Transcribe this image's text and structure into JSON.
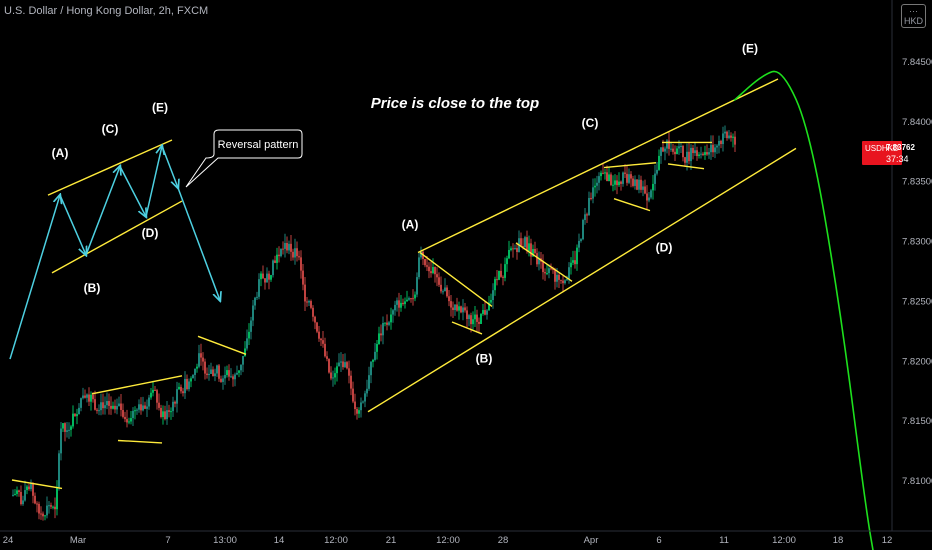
{
  "header": {
    "title": "U.S. Dollar / Hong Kong Dollar, 2h, FXCM",
    "currency": "HKD"
  },
  "colors": {
    "background": "#000000",
    "candle_up": "#26a69a",
    "candle_up_bright": "#00e676",
    "candle_down": "#ef5350",
    "pattern_lines": "#ffeb3b",
    "wave_arrows": "#4dd0e1",
    "projection": "#1de01d",
    "price_tag": "#e8141f",
    "axis_text": "#b2b5be"
  },
  "price_tag": {
    "symbol": "USDHKD",
    "price": "7.83762",
    "countdown": "37:34",
    "value": 7.83762
  },
  "annotations": {
    "headline": "Price is close to the top",
    "callout": "Reversal pattern"
  },
  "chart_data": {
    "type": "candlestick",
    "symbol": "USDHKD",
    "interval": "2h",
    "source": "FXCM",
    "y_axis": {
      "ticks": [
        7.845,
        7.84,
        7.835,
        7.83,
        7.825,
        7.82,
        7.815,
        7.81
      ],
      "tick_labels": [
        "7.84500",
        "7.84000",
        "7.83500",
        "7.83000",
        "7.82500",
        "7.82000",
        "7.81500",
        "7.81000"
      ],
      "range": [
        7.8055,
        7.8495
      ]
    },
    "x_axis": {
      "tick_labels": [
        "24",
        "Mar",
        "7",
        "13:00",
        "14",
        "12:00",
        "21",
        "12:00",
        "28",
        "Apr",
        "6",
        "11",
        "12:00",
        "18",
        "12"
      ]
    },
    "close_path": [
      [
        0,
        7.8088
      ],
      [
        6,
        7.8085
      ],
      [
        12,
        7.8087
      ],
      [
        18,
        7.8091
      ],
      [
        22,
        7.808
      ],
      [
        26,
        7.8089
      ],
      [
        32,
        7.8092
      ],
      [
        38,
        7.8072
      ],
      [
        44,
        7.8074
      ],
      [
        50,
        7.808
      ],
      [
        56,
        7.807
      ],
      [
        58,
        7.811
      ],
      [
        60,
        7.8145
      ],
      [
        66,
        7.814
      ],
      [
        72,
        7.8152
      ],
      [
        78,
        7.8162
      ],
      [
        84,
        7.8175
      ],
      [
        90,
        7.817
      ],
      [
        96,
        7.8162
      ],
      [
        102,
        7.8165
      ],
      [
        108,
        7.816
      ],
      [
        114,
        7.8158
      ],
      [
        120,
        7.816
      ],
      [
        126,
        7.8153
      ],
      [
        132,
        7.8155
      ],
      [
        138,
        7.8165
      ],
      [
        144,
        7.8161
      ],
      [
        150,
        7.817
      ],
      [
        156,
        7.8172
      ],
      [
        160,
        7.8155
      ],
      [
        164,
        7.8152
      ],
      [
        170,
        7.816
      ],
      [
        176,
        7.817
      ],
      [
        180,
        7.8175
      ],
      [
        186,
        7.818
      ],
      [
        192,
        7.8185
      ],
      [
        198,
        7.8202
      ],
      [
        204,
        7.8195
      ],
      [
        210,
        7.819
      ],
      [
        216,
        7.8192
      ],
      [
        222,
        7.8185
      ],
      [
        228,
        7.819
      ],
      [
        234,
        7.8184
      ],
      [
        240,
        7.8196
      ],
      [
        246,
        7.821
      ],
      [
        250,
        7.823
      ],
      [
        256,
        7.8255
      ],
      [
        262,
        7.827
      ],
      [
        268,
        7.8268
      ],
      [
        274,
        7.8285
      ],
      [
        280,
        7.829
      ],
      [
        286,
        7.8296
      ],
      [
        292,
        7.8292
      ],
      [
        298,
        7.8288
      ],
      [
        304,
        7.8255
      ],
      [
        310,
        7.825
      ],
      [
        316,
        7.823
      ],
      [
        320,
        7.822
      ],
      [
        326,
        7.82
      ],
      [
        332,
        7.818
      ],
      [
        338,
        7.8195
      ],
      [
        344,
        7.82
      ],
      [
        350,
        7.818
      ],
      [
        356,
        7.816
      ],
      [
        362,
        7.8165
      ],
      [
        368,
        7.8182
      ],
      [
        374,
        7.8205
      ],
      [
        380,
        7.8222
      ],
      [
        386,
        7.823
      ],
      [
        392,
        7.8238
      ],
      [
        398,
        7.8248
      ],
      [
        404,
        7.825
      ],
      [
        410,
        7.8246
      ],
      [
        416,
        7.8262
      ],
      [
        420,
        7.829
      ],
      [
        426,
        7.8282
      ],
      [
        432,
        7.8274
      ],
      [
        438,
        7.8266
      ],
      [
        444,
        7.8258
      ],
      [
        450,
        7.8248
      ],
      [
        456,
        7.8245
      ],
      [
        462,
        7.824
      ],
      [
        468,
        7.8237
      ],
      [
        474,
        7.8234
      ],
      [
        480,
        7.8236
      ],
      [
        486,
        7.8242
      ],
      [
        492,
        7.8258
      ],
      [
        498,
        7.827
      ],
      [
        504,
        7.8275
      ],
      [
        510,
        7.829
      ],
      [
        516,
        7.8295
      ],
      [
        522,
        7.83
      ],
      [
        528,
        7.8296
      ],
      [
        534,
        7.8286
      ],
      [
        540,
        7.828
      ],
      [
        546,
        7.8276
      ],
      [
        552,
        7.8272
      ],
      [
        558,
        7.827
      ],
      [
        564,
        7.8268
      ],
      [
        570,
        7.8275
      ],
      [
        576,
        7.8285
      ],
      [
        582,
        7.831
      ],
      [
        588,
        7.8328
      ],
      [
        594,
        7.8345
      ],
      [
        600,
        7.8352
      ],
      [
        606,
        7.8354
      ],
      [
        612,
        7.835
      ],
      [
        618,
        7.8345
      ],
      [
        624,
        7.8355
      ],
      [
        630,
        7.8352
      ],
      [
        636,
        7.8346
      ],
      [
        642,
        7.8345
      ],
      [
        648,
        7.8337
      ],
      [
        652,
        7.8348
      ],
      [
        656,
        7.8355
      ],
      [
        660,
        7.8372
      ],
      [
        666,
        7.8384
      ],
      [
        672,
        7.8376
      ],
      [
        678,
        7.8378
      ],
      [
        684,
        7.837
      ],
      [
        690,
        7.8372
      ],
      [
        696,
        7.8376
      ],
      [
        702,
        7.8373
      ],
      [
        708,
        7.8375
      ],
      [
        714,
        7.8378
      ],
      [
        720,
        7.8384
      ],
      [
        726,
        7.8386
      ],
      [
        732,
        7.8389
      ],
      [
        736,
        7.8377
      ]
    ],
    "pattern_lines": [
      {
        "from": [
          12,
          7.81
        ],
        "to": [
          62,
          7.8093
        ]
      },
      {
        "from": [
          92,
          7.8172
        ],
        "to": [
          182,
          7.8187
        ]
      },
      {
        "from": [
          118,
          7.8133
        ],
        "to": [
          162,
          7.8131
        ]
      },
      {
        "from": [
          198,
          7.822
        ],
        "to": [
          246,
          7.8205
        ]
      },
      {
        "from": [
          368,
          7.8157
        ],
        "to": [
          796,
          7.8377
        ]
      },
      {
        "from": [
          418,
          7.829
        ],
        "to": [
          778,
          7.8435
        ]
      },
      {
        "from": [
          420,
          7.829
        ],
        "to": [
          492,
          7.8245
        ]
      },
      {
        "from": [
          452,
          7.8232
        ],
        "to": [
          482,
          7.8222
        ]
      },
      {
        "from": [
          516,
          7.8298
        ],
        "to": [
          572,
          7.8266
        ]
      },
      {
        "from": [
          604,
          7.8361
        ],
        "to": [
          656,
          7.8365
        ]
      },
      {
        "from": [
          614,
          7.8335
        ],
        "to": [
          650,
          7.8325
        ]
      },
      {
        "from": [
          662,
          7.8382
        ],
        "to": [
          712,
          7.8382
        ]
      },
      {
        "from": [
          668,
          7.8364
        ],
        "to": [
          704,
          7.836
        ]
      },
      {
        "from": [
          48,
          7.8338
        ],
        "to": [
          172,
          7.8384
        ]
      },
      {
        "from": [
          52,
          7.8273
        ],
        "to": [
          182,
          7.8333
        ]
      }
    ],
    "wave_path": [
      [
        10,
        7.8201
      ],
      [
        60,
        7.8338
      ],
      [
        86,
        7.8288
      ],
      [
        120,
        7.8362
      ],
      [
        146,
        7.832
      ],
      [
        162,
        7.8379
      ],
      [
        178,
        7.8344
      ],
      [
        220,
        7.825
      ]
    ],
    "projection_path": [
      [
        734,
        7.8417
      ],
      [
        762,
        7.8438
      ],
      [
        782,
        7.8444
      ],
      [
        810,
        7.8392
      ],
      [
        840,
        7.8245
      ],
      [
        866,
        7.8075
      ],
      [
        876,
        7.8027
      ]
    ],
    "wave_labels": [
      {
        "text": "(A)",
        "x": 60,
        "y": 7.837
      },
      {
        "text": "(B)",
        "x": 92,
        "y": 7.8257
      },
      {
        "text": "(C)",
        "x": 110,
        "y": 7.839
      },
      {
        "text": "(D)",
        "x": 150,
        "y": 7.8303
      },
      {
        "text": "(E)",
        "x": 160,
        "y": 7.8408
      },
      {
        "text": "(A)",
        "x": 410,
        "y": 7.831
      },
      {
        "text": "(B)",
        "x": 484,
        "y": 7.8198
      },
      {
        "text": "(C)",
        "x": 590,
        "y": 7.8395
      },
      {
        "text": "(D)",
        "x": 664,
        "y": 7.8291
      },
      {
        "text": "(E)",
        "x": 750,
        "y": 7.8457
      }
    ]
  }
}
